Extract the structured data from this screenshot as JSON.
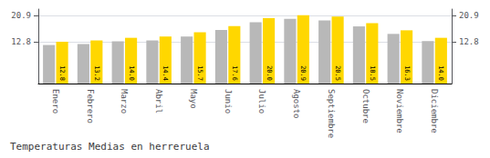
{
  "chart_data": {
    "type": "bar",
    "title": "Temperaturas Medias en herreruela",
    "categories": [
      "Enero",
      "Febrero",
      "Marzo",
      "Abril",
      "Mayo",
      "Junio",
      "Julio",
      "Agosto",
      "Septiembre",
      "Octubre",
      "Noviembre",
      "Diciembre"
    ],
    "series": [
      {
        "color": "#B8B8B8",
        "values": [
          11.8,
          12.1,
          12.9,
          13.2,
          14.4,
          16.4,
          18.8,
          19.8,
          19.3,
          17.5,
          15.2,
          13.0
        ]
      },
      {
        "color": "#FFD700",
        "values": [
          12.8,
          13.2,
          14.0,
          14.4,
          15.7,
          17.6,
          20.0,
          20.9,
          20.5,
          18.5,
          16.3,
          14.0
        ],
        "data_labels": true,
        "value_labels": [
          "12.8",
          "13.2",
          "14.0",
          "14.4",
          "15.7",
          "17.6",
          "20.0",
          "20.9",
          "20.5",
          "18.5",
          "16.3",
          "14.0"
        ]
      }
    ],
    "ylim": [
      0,
      22.8
    ],
    "yticks": [
      12.8,
      20.9
    ],
    "y2lim": [
      0,
      22.8
    ],
    "y2ticks": [
      12.8,
      20.9
    ],
    "grid": true
  }
}
